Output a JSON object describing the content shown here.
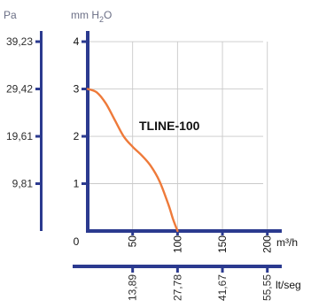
{
  "chart_data": {
    "type": "line",
    "title": "TLINE-100",
    "y_primary": {
      "unit_prefix": "mm H",
      "unit_sub": "2",
      "unit_suffix": "O",
      "ticks": [
        "0",
        "1",
        "2",
        "3",
        "4"
      ],
      "ylim": [
        0,
        4.3
      ]
    },
    "y_secondary": {
      "unit": "Pa",
      "ticks": [
        {
          "label": "9,81",
          "value": 1
        },
        {
          "label": "19,61",
          "value": 2
        },
        {
          "label": "29,42",
          "value": 3
        },
        {
          "label": "39,23",
          "value": 4
        }
      ]
    },
    "x_primary": {
      "unit": "m³/h",
      "ticks": [
        "50",
        "100",
        "150",
        "200"
      ],
      "xlim": [
        0,
        220
      ]
    },
    "x_secondary": {
      "unit": "lt/seg",
      "ticks": [
        {
          "label": "13,89",
          "value": 50
        },
        {
          "label": "27,78",
          "value": 100
        },
        {
          "label": "41,67",
          "value": 150
        },
        {
          "label": "55,55",
          "value": 200
        }
      ]
    },
    "series": [
      {
        "color": "#ee7a3a",
        "x": [
          0,
          10,
          20,
          30,
          40,
          50,
          60,
          70,
          80,
          90,
          95,
          100
        ],
        "y": [
          3.0,
          2.93,
          2.7,
          2.35,
          2.0,
          1.78,
          1.6,
          1.38,
          1.05,
          0.55,
          0.25,
          0.0
        ]
      }
    ],
    "grid": true
  }
}
